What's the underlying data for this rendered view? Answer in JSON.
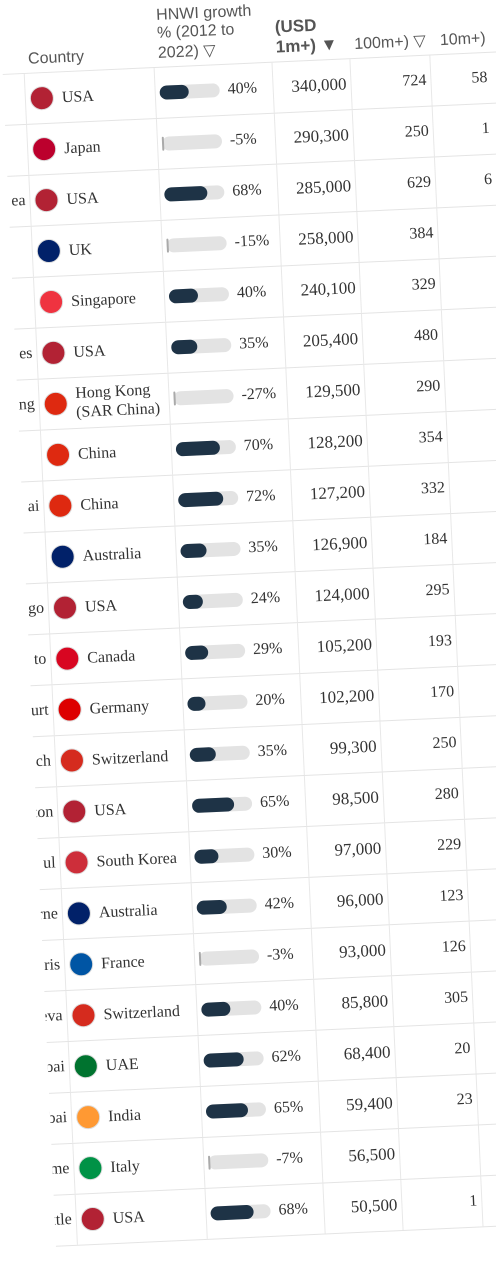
{
  "header": {
    "city": "",
    "country": "Country",
    "growth": "HNWI growth % (2012 to 2022) ▽",
    "hnwi": "(USD 1m+) ▼",
    "c100": "100m+) ▽",
    "c10": "10m+)"
  },
  "table": {
    "rows": [
      {
        "city": "",
        "country": "USA",
        "flag": "#b22234",
        "growth": 40,
        "growth_label": "40%",
        "hnwi": "340,000",
        "c100": "724",
        "c10": "58"
      },
      {
        "city": "",
        "country": "Japan",
        "flag": "#bc002d",
        "growth": -5,
        "growth_label": "-5%",
        "hnwi": "290,300",
        "c100": "250",
        "c10": "1"
      },
      {
        "city": "ea",
        "country": "USA",
        "flag": "#b22234",
        "growth": 68,
        "growth_label": "68%",
        "hnwi": "285,000",
        "c100": "629",
        "c10": "6"
      },
      {
        "city": "",
        "country": "UK",
        "flag": "#012169",
        "growth": -15,
        "growth_label": "-15%",
        "hnwi": "258,000",
        "c100": "384",
        "c10": ""
      },
      {
        "city": "",
        "country": "Singapore",
        "flag": "#ef3340",
        "growth": 40,
        "growth_label": "40%",
        "hnwi": "240,100",
        "c100": "329",
        "c10": ""
      },
      {
        "city": "es",
        "country": "USA",
        "flag": "#b22234",
        "growth": 35,
        "growth_label": "35%",
        "hnwi": "205,400",
        "c100": "480",
        "c10": ""
      },
      {
        "city": "ng",
        "country": "Hong Kong (SAR China)",
        "flag": "#de2910",
        "growth": -27,
        "growth_label": "-27%",
        "hnwi": "129,500",
        "c100": "290",
        "c10": ""
      },
      {
        "city": "",
        "country": "China",
        "flag": "#de2910",
        "growth": 70,
        "growth_label": "70%",
        "hnwi": "128,200",
        "c100": "354",
        "c10": ""
      },
      {
        "city": "ai",
        "country": "China",
        "flag": "#de2910",
        "growth": 72,
        "growth_label": "72%",
        "hnwi": "127,200",
        "c100": "332",
        "c10": ""
      },
      {
        "city": "",
        "country": "Australia",
        "flag": "#012169",
        "growth": 35,
        "growth_label": "35%",
        "hnwi": "126,900",
        "c100": "184",
        "c10": ""
      },
      {
        "city": "go",
        "country": "USA",
        "flag": "#b22234",
        "growth": 24,
        "growth_label": "24%",
        "hnwi": "124,000",
        "c100": "295",
        "c10": ""
      },
      {
        "city": "to",
        "country": "Canada",
        "flag": "#d80621",
        "growth": 29,
        "growth_label": "29%",
        "hnwi": "105,200",
        "c100": "193",
        "c10": ""
      },
      {
        "city": "kfurt",
        "country": "Germany",
        "flag": "#dd0000",
        "growth": 20,
        "growth_label": "20%",
        "hnwi": "102,200",
        "c100": "170",
        "c10": ""
      },
      {
        "city": "ch",
        "country": "Switzerland",
        "flag": "#d52b1e",
        "growth": 35,
        "growth_label": "35%",
        "hnwi": "99,300",
        "c100": "250",
        "c10": ""
      },
      {
        "city": "uston",
        "country": "USA",
        "flag": "#b22234",
        "growth": 65,
        "growth_label": "65%",
        "hnwi": "98,500",
        "c100": "280",
        "c10": ""
      },
      {
        "city": "ul",
        "country": "South Korea",
        "flag": "#cd2e3a",
        "growth": 30,
        "growth_label": "30%",
        "hnwi": "97,000",
        "c100": "229",
        "c10": ""
      },
      {
        "city": "elbourne",
        "country": "Australia",
        "flag": "#012169",
        "growth": 42,
        "growth_label": "42%",
        "hnwi": "96,000",
        "c100": "123",
        "c10": ""
      },
      {
        "city": "ris",
        "country": "France",
        "flag": "#0055a4",
        "growth": -3,
        "growth_label": "-3%",
        "hnwi": "93,000",
        "c100": "126",
        "c10": ""
      },
      {
        "city": "eneva",
        "country": "Switzerland",
        "flag": "#d52b1e",
        "growth": 40,
        "growth_label": "40%",
        "hnwi": "85,800",
        "c100": "305",
        "c10": ""
      },
      {
        "city": "Dubai",
        "country": "UAE",
        "flag": "#00732f",
        "growth": 62,
        "growth_label": "62%",
        "hnwi": "68,400",
        "c100": "20",
        "c10": ""
      },
      {
        "city": "Mumbai",
        "country": "India",
        "flag": "#ff9933",
        "growth": 65,
        "growth_label": "65%",
        "hnwi": "59,400",
        "c100": "23",
        "c10": ""
      },
      {
        "city": "Rome",
        "country": "Italy",
        "flag": "#009246",
        "growth": -7,
        "growth_label": "-7%",
        "hnwi": "56,500",
        "c100": "",
        "c10": ""
      },
      {
        "city": "Seattle",
        "country": "USA",
        "flag": "#b22234",
        "growth": 68,
        "growth_label": "68%",
        "hnwi": "50,500",
        "c100": "1",
        "c10": ""
      }
    ]
  }
}
